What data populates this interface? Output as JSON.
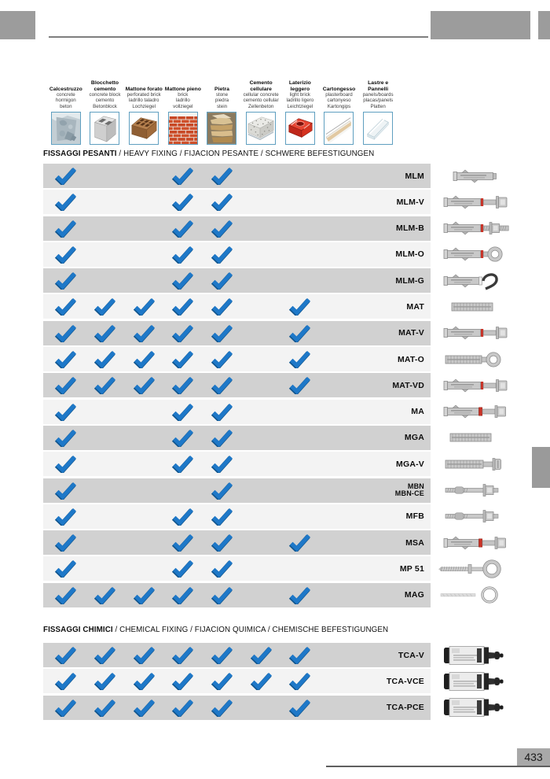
{
  "page": {
    "number": "433"
  },
  "colors": {
    "check_blue": "#1e78c8",
    "check_blue_dark": "#11568f",
    "row_dark": "#d1d1d1",
    "row_light": "#f3f3f3",
    "header_gray": "#9c9c9c",
    "image_border_blue": "#5f9fc0",
    "page_box_gray": "#a8a8a8"
  },
  "materials": [
    {
      "name": "Calcestruzzo",
      "subs": [
        "concrete",
        "hormigon",
        "beton"
      ],
      "icon": "concrete-icon"
    },
    {
      "name": "Blocchetto cemento",
      "subs": [
        "concrete block",
        "cemento",
        "Betonblock"
      ],
      "icon": "concrete-block-icon"
    },
    {
      "name": "Mattone forato",
      "subs": [
        "perforated brick",
        "ladrillo taladro",
        "Lochziegel"
      ],
      "icon": "perforated-brick-icon"
    },
    {
      "name": "Mattone pieno",
      "subs": [
        "brick",
        "ladrillo",
        "vollziegel"
      ],
      "icon": "solid-brick-icon"
    },
    {
      "name": "Pietra",
      "subs": [
        "stone",
        "piedra",
        "stein"
      ],
      "icon": "stone-icon"
    },
    {
      "name": "Cemento cellulare",
      "subs": [
        "cellular concrete",
        "cemento cellular",
        "Zellenbeton"
      ],
      "icon": "cellular-concrete-icon"
    },
    {
      "name": "Laterizio leggero",
      "subs": [
        "light brick",
        "ladrillo ligero",
        "Leichtziegel"
      ],
      "icon": "light-brick-icon"
    },
    {
      "name": "Cartongesso",
      "subs": [
        "plasterboard",
        "cartonyeso",
        "Kartongips"
      ],
      "icon": "plasterboard-icon"
    },
    {
      "name": "Lastre e Pannelli",
      "subs": [
        "panels/boards",
        "placas/panels",
        "Platten"
      ],
      "icon": "panels-icon"
    }
  ],
  "sections": [
    {
      "title_bold": "FISSAGGI PESANTI",
      "title_rest": " / HEAVY FIXING / FIJACION PESANTE / SCHWERE BEFESTIGUNGEN",
      "rows": [
        {
          "label": "MLM",
          "checks": [
            1,
            0,
            0,
            1,
            1,
            0,
            0,
            0,
            0
          ],
          "icon": "anchor-sleeve-icon"
        },
        {
          "label": "MLM-V",
          "checks": [
            1,
            0,
            0,
            1,
            1,
            0,
            0,
            0,
            0
          ],
          "icon": "anchor-sleeve-bolt-icon"
        },
        {
          "label": "MLM-B",
          "checks": [
            1,
            0,
            0,
            1,
            1,
            0,
            0,
            0,
            0
          ],
          "icon": "anchor-sleeve-stud-icon"
        },
        {
          "label": "MLM-O",
          "checks": [
            1,
            0,
            0,
            1,
            1,
            0,
            0,
            0,
            0
          ],
          "icon": "anchor-sleeve-eye-icon"
        },
        {
          "label": "MLM-G",
          "checks": [
            1,
            0,
            0,
            1,
            1,
            0,
            0,
            0,
            0
          ],
          "icon": "anchor-sleeve-hook-icon"
        },
        {
          "label": "MAT",
          "checks": [
            1,
            1,
            1,
            1,
            1,
            0,
            1,
            0,
            0
          ],
          "icon": "anchor-metal-sleeve-icon"
        },
        {
          "label": "MAT-V",
          "checks": [
            1,
            1,
            1,
            1,
            1,
            0,
            1,
            0,
            0
          ],
          "icon": "anchor-sleeve-bolt-icon"
        },
        {
          "label": "MAT-O",
          "checks": [
            1,
            1,
            1,
            1,
            1,
            0,
            1,
            0,
            0
          ],
          "icon": "anchor-metal-eye-icon"
        },
        {
          "label": "MAT-VD",
          "checks": [
            1,
            1,
            1,
            1,
            1,
            0,
            1,
            0,
            0
          ],
          "icon": "anchor-sleeve-bolt-icon"
        },
        {
          "label": "MA",
          "checks": [
            1,
            0,
            0,
            1,
            1,
            0,
            0,
            0,
            0
          ],
          "icon": "anchor-red-collar-bolt-icon"
        },
        {
          "label": "MGA",
          "checks": [
            1,
            0,
            0,
            1,
            1,
            0,
            0,
            0,
            0
          ],
          "icon": "anchor-knurled-icon"
        },
        {
          "label": "MGA-V",
          "checks": [
            1,
            0,
            0,
            1,
            1,
            0,
            0,
            0,
            0
          ],
          "icon": "anchor-knurled-screw-icon"
        },
        {
          "label": "MBN",
          "label2": "MBN-CE",
          "checks": [
            1,
            0,
            0,
            0,
            1,
            0,
            0,
            0,
            0
          ],
          "icon": "anchor-wedge-icon"
        },
        {
          "label": "MFB",
          "checks": [
            1,
            0,
            0,
            1,
            1,
            0,
            0,
            0,
            0
          ],
          "icon": "anchor-wedge-icon"
        },
        {
          "label": "MSA",
          "checks": [
            1,
            0,
            0,
            1,
            1,
            0,
            1,
            0,
            0
          ],
          "icon": "anchor-red-collar-bolt-icon"
        },
        {
          "label": "MP 51",
          "checks": [
            1,
            0,
            0,
            1,
            1,
            0,
            0,
            0,
            0
          ],
          "icon": "anchor-eyebolt-icon"
        },
        {
          "label": "MAG",
          "checks": [
            1,
            1,
            1,
            1,
            1,
            0,
            1,
            0,
            0
          ],
          "icon": "anchor-screw-ring-icon"
        }
      ]
    },
    {
      "title_bold": "FISSAGGI CHIMICI",
      "title_rest": " / CHEMICAL FIXING / FIJACION QUIMICA / CHEMISCHE BEFESTIGUNGEN",
      "rows": [
        {
          "label": "TCA-V",
          "checks": [
            1,
            1,
            1,
            1,
            1,
            1,
            1,
            0,
            0
          ],
          "icon": "chemical-cartridge-icon"
        },
        {
          "label": "TCA-VCE",
          "checks": [
            1,
            1,
            1,
            1,
            1,
            1,
            1,
            0,
            0
          ],
          "icon": "chemical-cartridge-icon"
        },
        {
          "label": "TCA-PCE",
          "checks": [
            1,
            1,
            1,
            1,
            1,
            0,
            1,
            0,
            0
          ],
          "icon": "chemical-cartridge-icon"
        }
      ]
    }
  ]
}
